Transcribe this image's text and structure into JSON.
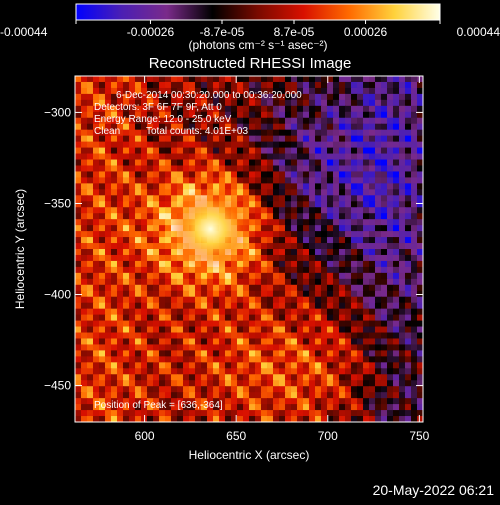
{
  "chart_data": {
    "type": "heatmap",
    "title": "Reconstructed RHESSI Image",
    "xlabel": "Heliocentric X (arcsec)",
    "ylabel": "Heliocentric Y (arcsec)",
    "xlim": [
      562,
      752
    ],
    "ylim": [
      -470,
      -280
    ],
    "x_ticks": [
      600,
      650,
      700,
      750
    ],
    "y_ticks": [
      -300,
      -350,
      -400,
      -450
    ],
    "colorbar": {
      "range": [
        -0.00044,
        0.00044
      ],
      "ticks": [
        -0.00044,
        -0.00026,
        -8.7e-05,
        8.7e-05,
        0.00026,
        0.00044
      ],
      "tick_labels": [
        "-0.00044",
        "-0.00026",
        "-8.7e-05",
        "8.7e-05",
        "0.00026",
        "0.00044"
      ],
      "unit_label": "(photons cm⁻² s⁻¹ asec⁻²)",
      "colors": [
        "#0000ff",
        "#4b1fb4",
        "#7a2a8a",
        "#000000",
        "#7a0a00",
        "#d81000",
        "#ff6a00",
        "#ffd23c",
        "#ffffe8"
      ]
    },
    "annotations": [
      "6-Dec-2014 00:30:20.000 to 00:36:20.000",
      "Detectors: 3F 6F 7F 9F, Att 0",
      "Energy Range: 12.0 - 25.0 keV",
      "Clean",
      "Total counts: 4.01E+03",
      "Position of Peak = [636,-364]"
    ],
    "peak": {
      "x": 636,
      "y": -364
    }
  },
  "footer": {
    "timestamp": "20-May-2022 06:21"
  }
}
